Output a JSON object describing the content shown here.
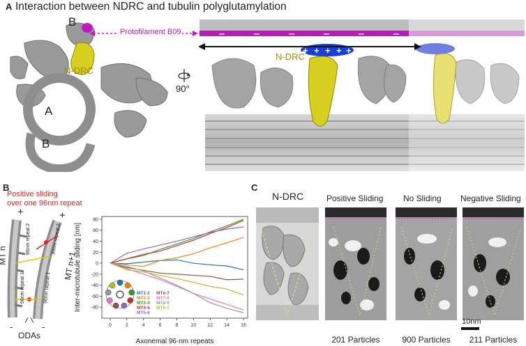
{
  "panel_a": {
    "letter": "A",
    "title": "Interaction between NDRC and tubulin polyglutamylation",
    "label_B_top": "B",
    "label_A": "A",
    "label_B_bottom": "B",
    "ndrc_left": "N-DRC",
    "protofilament": "Protofilament B09",
    "rotation": "90°",
    "ndrc_right": "N-DRC"
  },
  "panel_b": {
    "letter": "B",
    "sliding_note_1": "Positive sliding",
    "sliding_note_2": "over one 96nm repeat",
    "plus_1": "+",
    "plus_2": "+",
    "minus_1": "-",
    "minus_2": "-",
    "mt_n": "MT n",
    "mt_n1": "MT n+1",
    "repeat_1": "96nm repeat 1",
    "repeat_2": "96nm repeat 2",
    "repeat_1b": "96nm repeat 1",
    "repeat_2b": "96nm repeat 2",
    "odas": "ODAs"
  },
  "chart_data": {
    "type": "line",
    "xlabel": "Axonemal 96-nm repeats",
    "ylabel": "Inter-microtubule sliding [nm]",
    "xlim": [
      -1,
      16.5
    ],
    "ylim": [
      -100,
      85
    ],
    "xticks": [
      "0",
      "2",
      "4",
      "6",
      "8",
      "10",
      "12",
      "14",
      "16"
    ],
    "yticks": [
      "-80",
      "-60",
      "-40",
      "-20",
      "0",
      "20",
      "40",
      "60",
      "80"
    ],
    "x": [
      0,
      2,
      4,
      6,
      8,
      10,
      12,
      14,
      16
    ],
    "grid": false,
    "legend_placement": "lower-left",
    "series": [
      {
        "name": "MT1-2",
        "color": "#1f77b4",
        "values": [
          0,
          -1,
          2,
          5,
          6,
          0,
          -3,
          -5,
          -12
        ]
      },
      {
        "name": "MT2-3",
        "color": "#ff7f0e",
        "values": [
          0,
          -3,
          -6,
          5,
          10,
          17,
          28,
          37,
          47
        ]
      },
      {
        "name": "MT3-4",
        "color": "#2ca02c",
        "values": [
          0,
          8,
          14,
          25,
          35,
          45,
          57,
          68,
          80
        ]
      },
      {
        "name": "MT4-5",
        "color": "#d62728",
        "values": [
          0,
          8,
          16,
          22,
          32,
          42,
          54,
          65,
          78
        ]
      },
      {
        "name": "MT5-6",
        "color": "#9467bd",
        "values": [
          0,
          18,
          26,
          33,
          40,
          48,
          56,
          62,
          66
        ]
      },
      {
        "name": "MT6-7",
        "color": "#8c564b",
        "values": [
          0,
          -8,
          -13,
          -18,
          -20,
          -22,
          -24,
          -30,
          -29
        ]
      },
      {
        "name": "MT7-8",
        "color": "#e377c2",
        "values": [
          0,
          -10,
          -20,
          -30,
          -42,
          -55,
          -65,
          -75,
          -85
        ]
      },
      {
        "name": "MT8-9",
        "color": "#999999",
        "values": [
          0,
          -6,
          -14,
          -27,
          -40,
          -55,
          -72,
          -82,
          -90
        ]
      },
      {
        "name": "MT9-1",
        "color": "#bcbd22",
        "values": [
          0,
          -12,
          -16,
          -22,
          -28,
          -35,
          -42,
          -47,
          -58
        ]
      }
    ]
  },
  "panel_c": {
    "letter": "C",
    "col_ndrc": "N-DRC",
    "col_pos": "Positive Sliding",
    "col_none": "No Sliding",
    "col_neg": "Negative Sliding",
    "count_pos": "201 Particles",
    "count_none": "900 Particles",
    "count_neg": "211 Particles",
    "scale": "10nm"
  }
}
